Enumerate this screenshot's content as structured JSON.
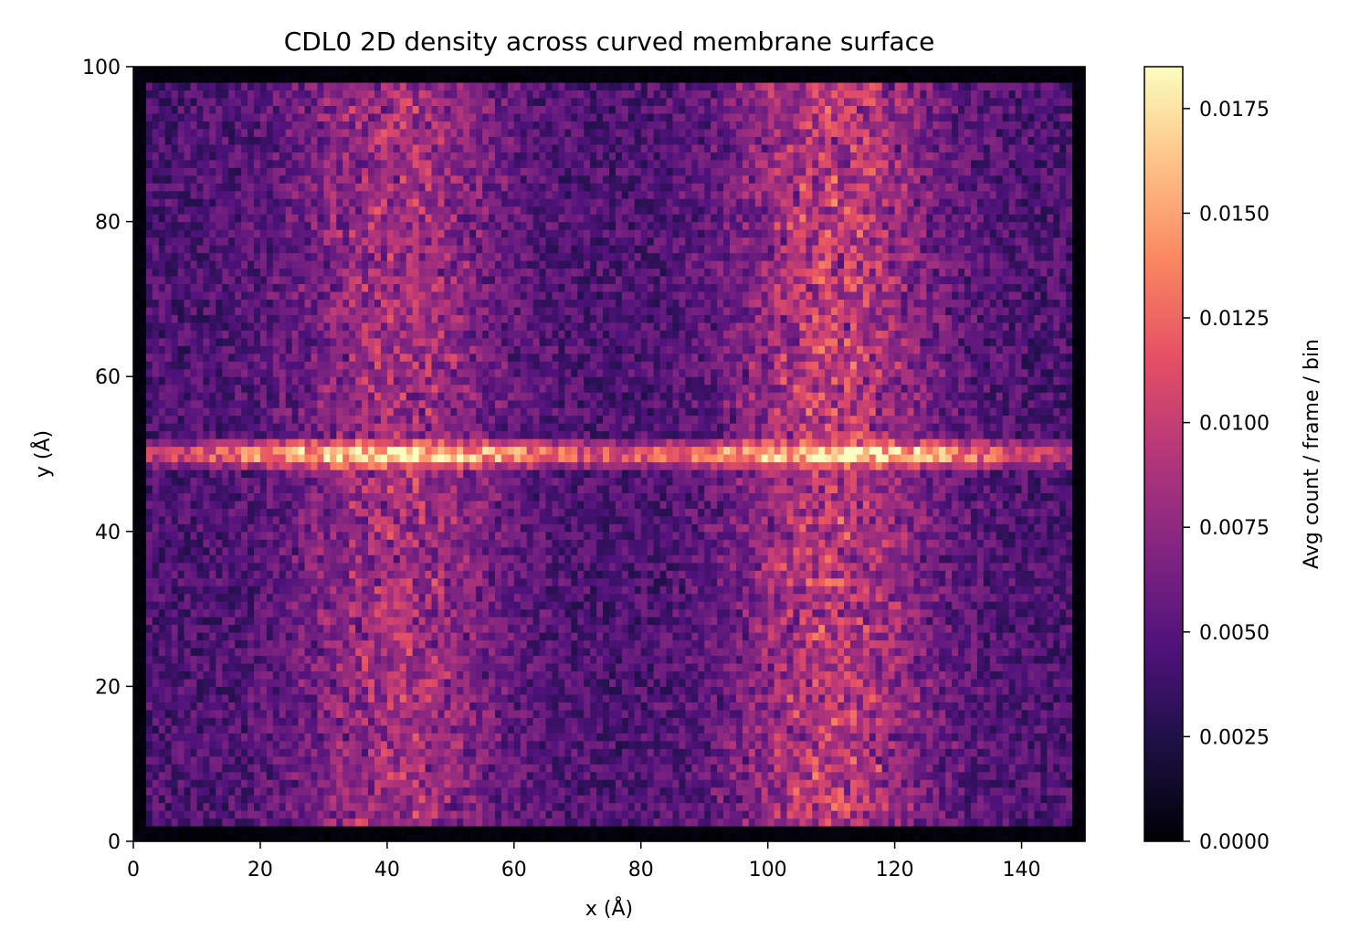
{
  "chart_data": {
    "type": "heatmap",
    "title": "CDL0 2D density across curved membrane surface",
    "xlabel": "x (Å)",
    "ylabel": "y (Å)",
    "xlim": [
      0,
      150
    ],
    "ylim": [
      0,
      100
    ],
    "xticks": [
      0,
      20,
      40,
      60,
      80,
      100,
      120,
      140
    ],
    "yticks": [
      0,
      20,
      40,
      60,
      80,
      100
    ],
    "xtick_labels": [
      "0",
      "20",
      "40",
      "60",
      "80",
      "100",
      "120",
      "140"
    ],
    "ytick_labels": [
      "0",
      "20",
      "40",
      "60",
      "80",
      "100"
    ],
    "bins": {
      "x": 150,
      "y": 100,
      "bin_width_angstrom": 1
    },
    "colormap": "magma",
    "colormap_stops": [
      "#000004",
      "#1c1044",
      "#4f127b",
      "#812581",
      "#b5367a",
      "#e55064",
      "#fb8761",
      "#fec287",
      "#fcfdbf"
    ],
    "colorbar": {
      "label": "Avg count / frame / bin",
      "vmin": 0.0,
      "vmax": 0.0185,
      "ticks": [
        0.0,
        0.0025,
        0.005,
        0.0075,
        0.01,
        0.0125,
        0.015,
        0.0175
      ],
      "tick_labels": [
        "0.0000",
        "0.0025",
        "0.0050",
        "0.0075",
        "0.0100",
        "0.0125",
        "0.0150",
        "0.0175"
      ]
    },
    "features": [
      {
        "kind": "horizontal band",
        "y": 50,
        "x_range": [
          2,
          148
        ],
        "peak_value": 0.0185,
        "peaks_at_x": [
          30,
          50,
          100,
          120
        ]
      },
      {
        "kind": "vertical band",
        "x_center": 42,
        "y_range": [
          2,
          98
        ],
        "typical_value": 0.0085
      },
      {
        "kind": "vertical band",
        "x_center": 110,
        "y_range": [
          2,
          98
        ],
        "typical_value": 0.0095
      },
      {
        "kind": "background",
        "typical_value": 0.0045
      },
      {
        "kind": "low-density margin",
        "width_bins": 2,
        "value": 0.0005
      }
    ]
  }
}
